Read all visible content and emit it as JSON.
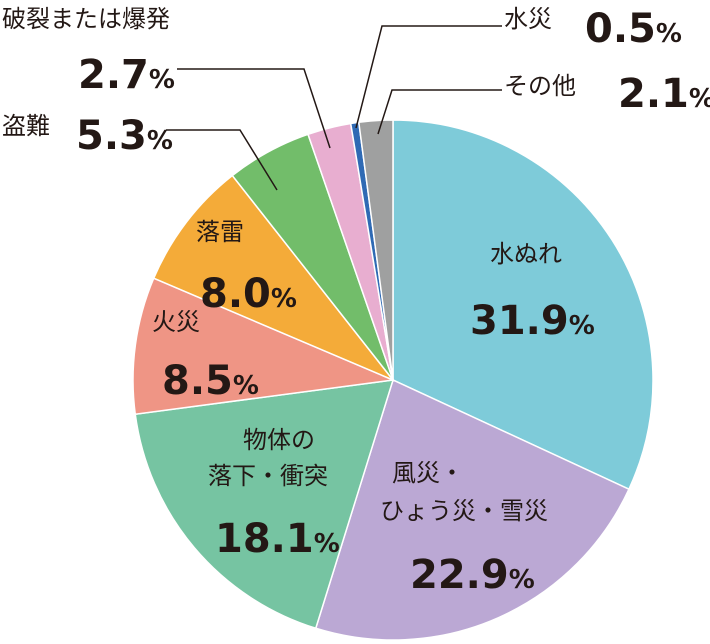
{
  "chart_data": {
    "type": "pie",
    "start_angle_deg": 0,
    "direction": "clockwise",
    "series": [
      {
        "name": "水ぬれ",
        "value": 31.9,
        "display": "31.9",
        "color": "#7ecbd9"
      },
      {
        "name": "風災・ひょう災・雪災",
        "value": 22.9,
        "display": "22.9",
        "color": "#bba8d4"
      },
      {
        "name": "物体の落下・衝突",
        "value": 18.1,
        "display": "18.1",
        "color": "#76c4a2"
      },
      {
        "name": "火災",
        "value": 8.5,
        "display": "8.5",
        "color": "#ef9585"
      },
      {
        "name": "落雷",
        "value": 8.0,
        "display": "8.0",
        "color": "#f4ab39"
      },
      {
        "name": "盗難",
        "value": 5.3,
        "display": "5.3",
        "color": "#72bd6a"
      },
      {
        "name": "破裂または爆発",
        "value": 2.7,
        "display": "2.7",
        "color": "#e8aed0"
      },
      {
        "name": "水災",
        "value": 0.5,
        "display": "0.5",
        "color": "#2f6ab4"
      },
      {
        "name": "その他",
        "value": 2.1,
        "display": "2.1",
        "color": "#9fa0a0"
      }
    ],
    "unit": "%"
  }
}
